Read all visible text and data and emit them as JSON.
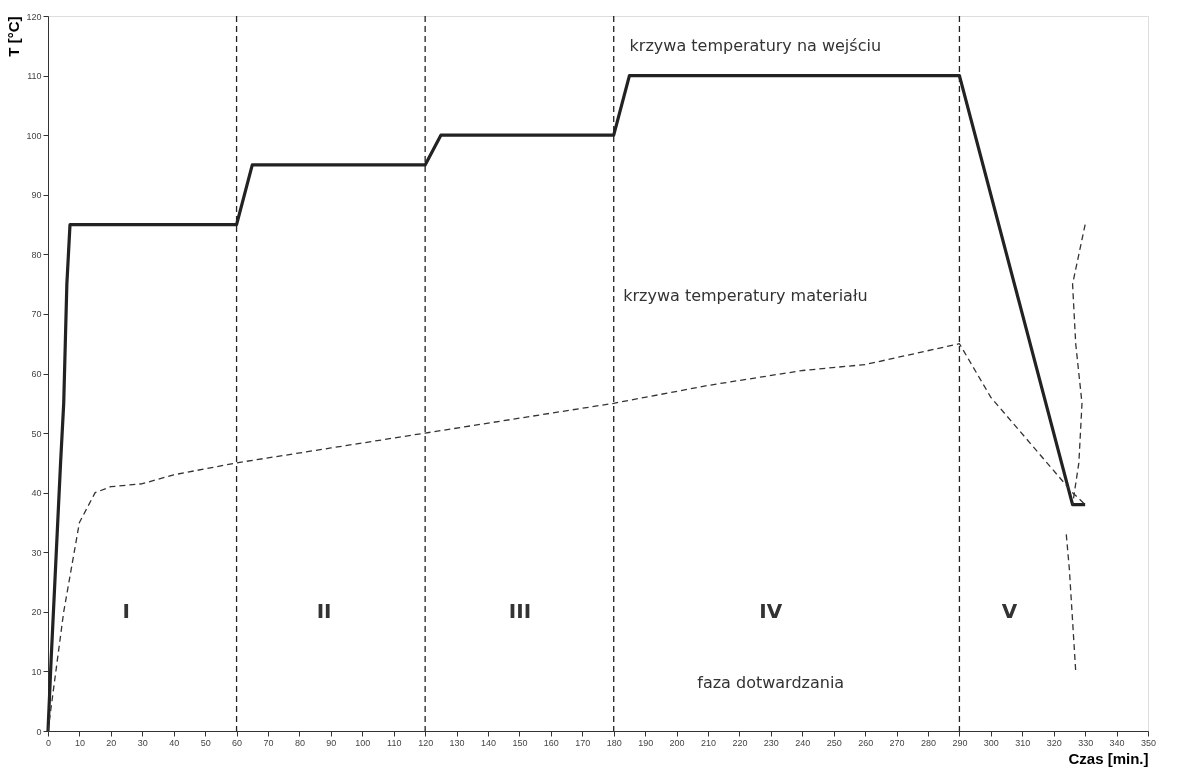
{
  "chart_data": {
    "type": "line",
    "ylabel": "T [°C]",
    "xlabel": "Czas [min.]",
    "xlim": [
      0,
      350
    ],
    "ylim": [
      0,
      120
    ],
    "xticks": [
      0,
      10,
      20,
      30,
      40,
      50,
      60,
      70,
      80,
      90,
      100,
      110,
      120,
      130,
      140,
      150,
      160,
      170,
      180,
      190,
      200,
      210,
      220,
      230,
      240,
      250,
      260,
      270,
      280,
      290,
      300,
      310,
      320,
      330,
      340,
      350
    ],
    "yticks": [
      0,
      10,
      20,
      30,
      40,
      50,
      60,
      70,
      80,
      90,
      100,
      110,
      120
    ],
    "grid": false,
    "marker": "none",
    "series": [
      {
        "color": "#222222",
        "line_style": "solid",
        "x": [
          0,
          1,
          2,
          3,
          4,
          5,
          5.5,
          6,
          7,
          60,
          65,
          120,
          125,
          180,
          185,
          290,
          326,
          330
        ],
        "values": [
          0,
          12,
          23,
          34,
          45,
          55,
          65,
          75,
          85,
          85,
          95,
          95,
          100,
          100,
          110,
          110,
          38,
          38
        ]
      },
      {
        "color": "#333333",
        "line_style": "dashed",
        "x": [
          0,
          5,
          10,
          15,
          20,
          30,
          40,
          50,
          60,
          90,
          120,
          150,
          180,
          210,
          240,
          260,
          290,
          300,
          326,
          330
        ],
        "values": [
          0,
          20,
          35,
          40,
          41,
          41.5,
          43,
          44,
          45,
          47.5,
          50,
          52.5,
          55,
          58,
          60.5,
          61.5,
          65,
          56,
          40,
          38
        ]
      },
      {
        "color": "#333333",
        "line_style": "dashed",
        "x": [
          330,
          326,
          327,
          329,
          328,
          326,
          325,
          324,
          325,
          327
        ],
        "values": [
          85,
          75,
          65,
          55,
          45,
          38,
          null,
          33,
          27,
          10
        ]
      }
    ],
    "ref_lines": [
      {
        "axis": "x",
        "value": 60,
        "line_style": "dashed",
        "color": "#222222"
      },
      {
        "axis": "x",
        "value": 120,
        "line_style": "dashed",
        "color": "#222222"
      },
      {
        "axis": "x",
        "value": 180,
        "line_style": "dashed",
        "color": "#222222"
      },
      {
        "axis": "x",
        "value": 290,
        "line_style": "dashed",
        "color": "#222222"
      }
    ],
    "annotations": [
      "I",
      "II",
      "III",
      "IV",
      "V",
      "faza dotwardzania",
      "krzywa temperatury na wejściu",
      "krzywa temperatury materiału"
    ]
  }
}
